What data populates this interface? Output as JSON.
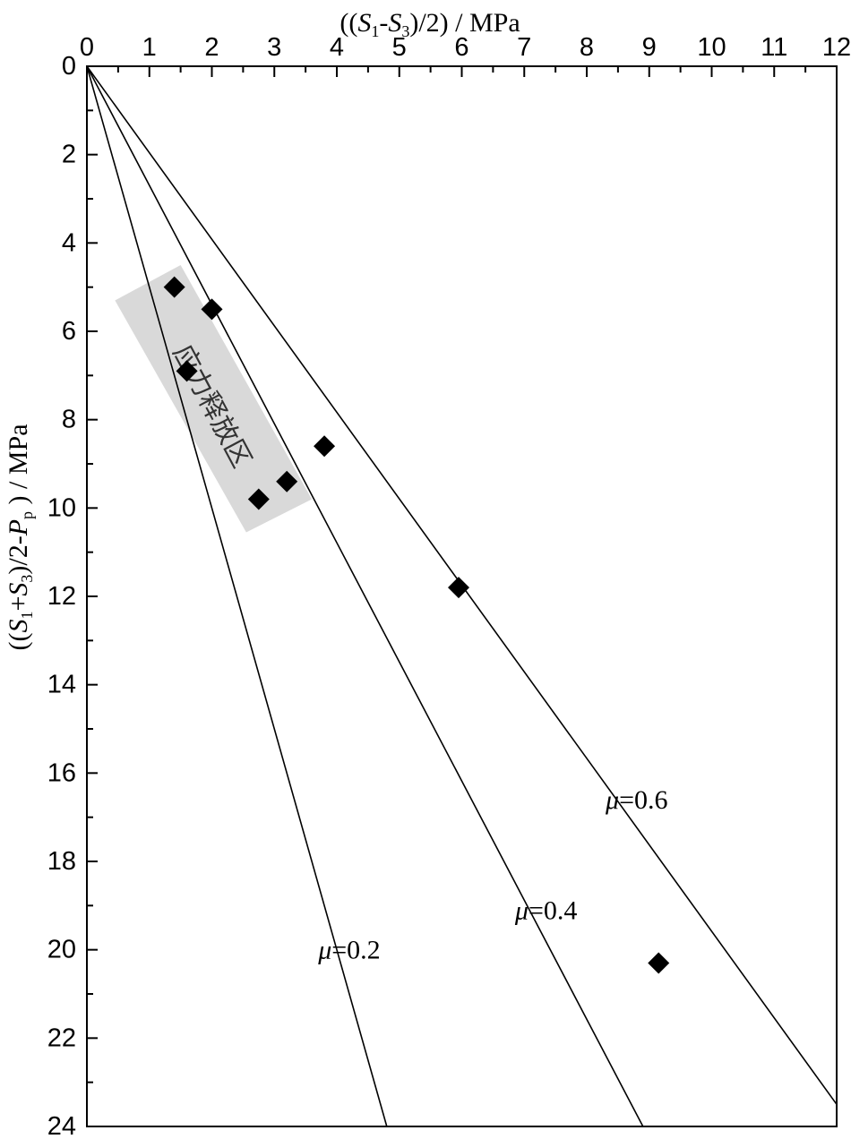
{
  "chart_data": {
    "type": "scatter",
    "x_axis": {
      "label_parts": [
        "((",
        "S",
        "1",
        "-",
        "S",
        "3",
        ")/2) / MPa"
      ],
      "range": [
        0,
        12
      ],
      "ticks": [
        "0",
        "1",
        "2",
        "3",
        "4",
        "5",
        "6",
        "7",
        "8",
        "9",
        "10",
        "11",
        "12"
      ],
      "position": "top"
    },
    "y_axis": {
      "label_parts": [
        "((",
        "S",
        "1",
        "+",
        "S",
        "3",
        ")/2-",
        "P",
        "p",
        " ) / MPa"
      ],
      "range": [
        0,
        24
      ],
      "ticks": [
        "0",
        "2",
        "4",
        "6",
        "8",
        "10",
        "12",
        "14",
        "16",
        "18",
        "20",
        "22",
        "24"
      ],
      "inverted": true
    },
    "friction_lines": [
      {
        "mu_symbol": "μ",
        "value_text": "=0.2",
        "mu": 0.2,
        "x_at_y24": 4.8
      },
      {
        "mu_symbol": "μ",
        "value_text": "=0.4",
        "mu": 0.4,
        "x_at_y24": 8.9
      },
      {
        "mu_symbol": "μ",
        "value_text": "=0.6",
        "mu": 0.6,
        "x_at_y23_5": 12.0
      }
    ],
    "points": [
      {
        "x": 1.4,
        "y": 5.0
      },
      {
        "x": 2.0,
        "y": 5.5
      },
      {
        "x": 1.6,
        "y": 6.9
      },
      {
        "x": 3.8,
        "y": 8.6
      },
      {
        "x": 3.2,
        "y": 9.4
      },
      {
        "x": 2.75,
        "y": 9.8
      },
      {
        "x": 5.95,
        "y": 11.8
      },
      {
        "x": 9.15,
        "y": 20.3
      }
    ],
    "region": {
      "label": "应力释放区",
      "color": "#d9d9d9"
    },
    "grid": false,
    "legend": "none"
  }
}
